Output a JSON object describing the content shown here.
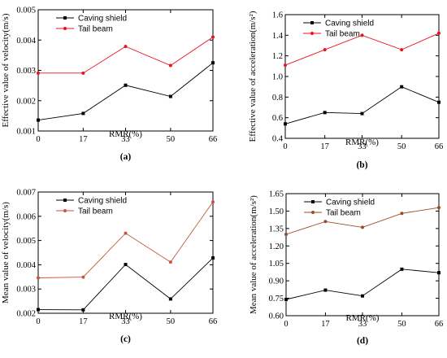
{
  "colors": {
    "caving_shield": "#000000",
    "tail_beam_a": "#e8131f",
    "tail_beam_b": "#e8131f",
    "tail_beam_c": "#c8553d",
    "tail_beam_d": "#9b4a26"
  },
  "chart_data": [
    {
      "id": "a",
      "type": "line",
      "panel_label": "(a)",
      "xlabel": "RMR(%)",
      "ylabel": "Effective value of velocity(m/s)",
      "categories": [
        "0",
        "17",
        "33",
        "50",
        "66"
      ],
      "x": [
        0,
        17,
        33,
        50,
        66
      ],
      "xlim": [
        0,
        66
      ],
      "ylim": [
        0.001,
        0.005
      ],
      "yticks": [
        "0.001",
        "0.002",
        "0.003",
        "0.004",
        "0.005"
      ],
      "legend_position": "top-left",
      "series": [
        {
          "name": "Caving shield",
          "marker": "square",
          "color_key": "caving_shield",
          "values": [
            0.00136,
            0.00158,
            0.00251,
            0.00214,
            0.00325
          ]
        },
        {
          "name": "Tail beam",
          "marker": "circle",
          "color_key": "tail_beam_a",
          "values": [
            0.00291,
            0.00291,
            0.00379,
            0.00316,
            0.0041
          ]
        }
      ]
    },
    {
      "id": "b",
      "type": "line",
      "panel_label": "(b)",
      "xlabel": "RMR(%)",
      "ylabel": "Effective value of acceleration(m/s²)",
      "categories": [
        "0",
        "17",
        "33",
        "50",
        "66"
      ],
      "x": [
        0,
        17,
        33,
        50,
        66
      ],
      "xlim": [
        0,
        66
      ],
      "ylim": [
        0.4,
        1.6
      ],
      "yticks": [
        "0.4",
        "0.6",
        "0.8",
        "1.0",
        "1.2",
        "1.4",
        "1.6"
      ],
      "legend_position": "top-left",
      "series": [
        {
          "name": "Caving shield",
          "marker": "square",
          "color_key": "caving_shield",
          "values": [
            0.54,
            0.65,
            0.64,
            0.9,
            0.75
          ]
        },
        {
          "name": "Tail beam",
          "marker": "circle",
          "color_key": "tail_beam_b",
          "values": [
            1.11,
            1.26,
            1.4,
            1.26,
            1.42
          ]
        }
      ]
    },
    {
      "id": "c",
      "type": "line",
      "panel_label": "(c)",
      "xlabel": "RMR(%)",
      "ylabel": "Mean value of velocity(m/s)",
      "categories": [
        "0",
        "17",
        "33",
        "50",
        "66"
      ],
      "x": [
        0,
        17,
        33,
        50,
        66
      ],
      "xlim": [
        0,
        66
      ],
      "ylim": [
        0.002,
        0.007
      ],
      "yticks": [
        "0.002",
        "0.003",
        "0.004",
        "0.005",
        "0.006",
        "0.007"
      ],
      "legend_position": "top-left",
      "series": [
        {
          "name": "Caving shield",
          "marker": "square",
          "color_key": "caving_shield",
          "values": [
            0.00215,
            0.00214,
            0.00401,
            0.00259,
            0.00428
          ]
        },
        {
          "name": "Tail beam",
          "marker": "circle",
          "color_key": "tail_beam_c",
          "values": [
            0.00346,
            0.00349,
            0.0053,
            0.00411,
            0.00659
          ]
        }
      ]
    },
    {
      "id": "d",
      "type": "line",
      "panel_label": "(d)",
      "xlabel": "RMR(%)",
      "ylabel": "Mean value of acceleration(m/s²)",
      "categories": [
        "0",
        "17",
        "33",
        "50",
        "66"
      ],
      "x": [
        0,
        17,
        33,
        50,
        66
      ],
      "xlim": [
        0,
        66
      ],
      "ylim": [
        0.6,
        1.65
      ],
      "yticks": [
        "0.60",
        "0.75",
        "0.90",
        "1.05",
        "1.20",
        "1.35",
        "1.50",
        "1.65"
      ],
      "legend_position": "top-left",
      "series": [
        {
          "name": "Caving shield",
          "marker": "square",
          "color_key": "caving_shield",
          "values": [
            0.74,
            0.82,
            0.77,
            1.0,
            0.97
          ]
        },
        {
          "name": "Tail beam",
          "marker": "circle",
          "color_key": "tail_beam_d",
          "values": [
            1.3,
            1.41,
            1.36,
            1.48,
            1.53
          ]
        }
      ]
    }
  ]
}
